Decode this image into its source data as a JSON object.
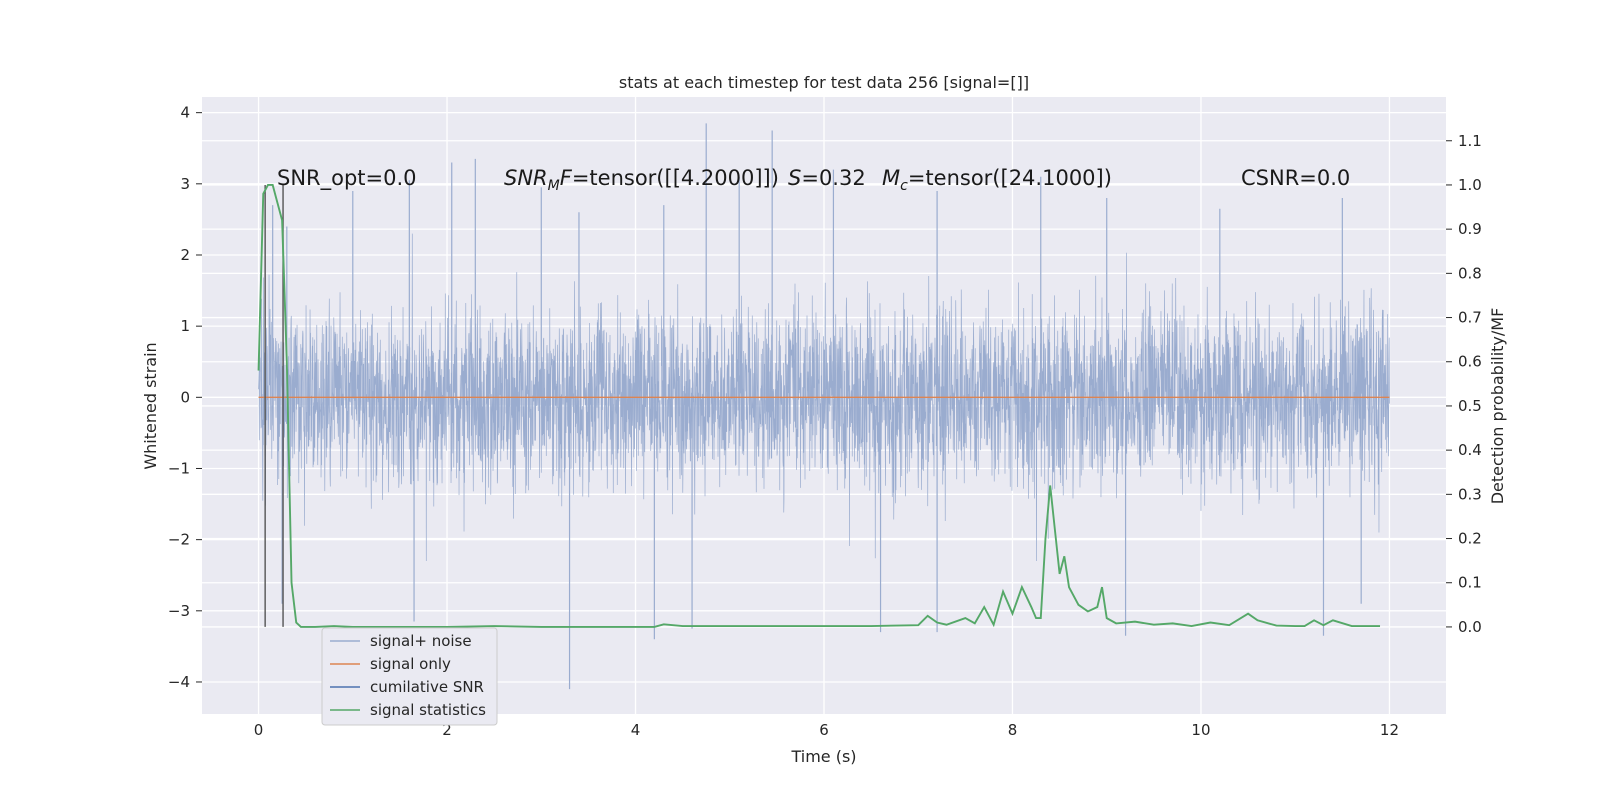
{
  "chart_data": {
    "type": "line",
    "title": "stats at each timestep for test data 256 [signal=[]]",
    "xlabel": "Time (s)",
    "ylabel": "Whitened strain",
    "y2label": "Detection probability/MF",
    "xlim": [
      -0.6,
      12.6
    ],
    "ylim": [
      -4.45,
      4.22
    ],
    "y2lim": [
      -0.197,
      1.199
    ],
    "xticks": [
      0,
      2,
      4,
      6,
      8,
      10,
      12
    ],
    "yticks": [
      -4,
      -3,
      -2,
      -1,
      0,
      1,
      2,
      3,
      4
    ],
    "y2ticks": [
      0.0,
      0.1,
      0.2,
      0.3,
      0.4,
      0.5,
      0.6,
      0.7,
      0.8,
      0.9,
      1.0,
      1.1
    ],
    "xtick_labels": [
      "0",
      "2",
      "4",
      "6",
      "8",
      "10",
      "12"
    ],
    "ytick_labels": [
      "−4",
      "−3",
      "−2",
      "−1",
      "0",
      "1",
      "2",
      "3",
      "4"
    ],
    "y2tick_labels": [
      "0.0",
      "0.1",
      "0.2",
      "0.3",
      "0.4",
      "0.5",
      "0.6",
      "0.7",
      "0.8",
      "0.9",
      "1.0",
      "1.1"
    ],
    "grid": true,
    "legend_position": "lower-left",
    "annotations": {
      "snr_opt": "SNR_opt=0.0",
      "snr_mf_label": "SNR",
      "snr_mf_sub": "M",
      "snr_mf_suffix": "F",
      "snr_mf_value": "=tensor([[4.2000]])",
      "s_label": "S",
      "s_value": "=0.32",
      "mc_label": "M",
      "mc_sub": "c",
      "mc_value": "=tensor([24.1000])",
      "csnr": "CSNR=0.0"
    },
    "series": [
      {
        "name": "signal+ noise",
        "color": "#9aaccf",
        "axis": "left",
        "x_range": [
          0,
          12
        ],
        "typical_range": [
          -1.7,
          1.8
        ],
        "peaks_high": [
          [
            0.15,
            2.7
          ],
          [
            0.3,
            2.4
          ],
          [
            1.0,
            2.9
          ],
          [
            1.6,
            3.05
          ],
          [
            2.05,
            3.3
          ],
          [
            2.3,
            3.35
          ],
          [
            3.0,
            2.95
          ],
          [
            3.4,
            2.6
          ],
          [
            4.3,
            2.7
          ],
          [
            4.75,
            3.85
          ],
          [
            5.1,
            3.1
          ],
          [
            5.45,
            3.75
          ],
          [
            6.1,
            3.2
          ],
          [
            7.2,
            2.9
          ],
          [
            8.3,
            3.1
          ],
          [
            9.0,
            2.8
          ],
          [
            10.2,
            2.65
          ],
          [
            11.5,
            2.8
          ]
        ],
        "peaks_low": [
          [
            0.25,
            -2.9
          ],
          [
            1.65,
            -3.15
          ],
          [
            3.3,
            -4.1
          ],
          [
            4.2,
            -3.4
          ],
          [
            4.6,
            -3.25
          ],
          [
            6.6,
            -3.3
          ],
          [
            7.2,
            -3.3
          ],
          [
            9.2,
            -3.35
          ],
          [
            11.3,
            -3.35
          ],
          [
            11.7,
            -2.9
          ]
        ]
      },
      {
        "name": "signal only",
        "color": "#dd8452",
        "axis": "left",
        "x": [
          0,
          12
        ],
        "y": [
          0,
          0
        ]
      },
      {
        "name": "cumilative SNR",
        "color": "#4c72b0",
        "axis": "left",
        "x": [],
        "y": []
      },
      {
        "name": "signal statistics",
        "color": "#55a868",
        "axis": "right",
        "x": [
          0.0,
          0.05,
          0.1,
          0.15,
          0.2,
          0.25,
          0.3,
          0.35,
          0.4,
          0.45,
          0.5,
          0.6,
          0.8,
          1.0,
          1.2,
          1.5,
          2.0,
          2.5,
          3.0,
          3.5,
          4.0,
          4.2,
          4.3,
          4.5,
          5.0,
          5.5,
          6.0,
          6.5,
          7.0,
          7.1,
          7.2,
          7.3,
          7.5,
          7.6,
          7.7,
          7.8,
          7.9,
          8.0,
          8.1,
          8.2,
          8.25,
          8.3,
          8.35,
          8.4,
          8.45,
          8.5,
          8.55,
          8.6,
          8.7,
          8.8,
          8.9,
          8.95,
          9.0,
          9.1,
          9.3,
          9.5,
          9.7,
          9.9,
          10.1,
          10.3,
          10.5,
          10.6,
          10.8,
          11.0,
          11.1,
          11.2,
          11.3,
          11.4,
          11.6,
          11.9
        ],
        "y": [
          0.58,
          0.98,
          1.0,
          1.0,
          0.96,
          0.92,
          0.6,
          0.1,
          0.01,
          0.0,
          0.0,
          0.0,
          0.002,
          0.0,
          0.0,
          0.0,
          0.0,
          0.002,
          0.0,
          0.0,
          0.0,
          0.0,
          0.006,
          0.002,
          0.002,
          0.002,
          0.002,
          0.002,
          0.004,
          0.025,
          0.01,
          0.005,
          0.02,
          0.008,
          0.045,
          0.005,
          0.08,
          0.03,
          0.09,
          0.045,
          0.02,
          0.02,
          0.2,
          0.32,
          0.22,
          0.12,
          0.16,
          0.09,
          0.05,
          0.035,
          0.045,
          0.09,
          0.02,
          0.008,
          0.012,
          0.005,
          0.008,
          0.002,
          0.01,
          0.004,
          0.03,
          0.015,
          0.003,
          0.002,
          0.002,
          0.015,
          0.004,
          0.015,
          0.002,
          0.002
        ]
      }
    ],
    "vlines": [
      0.07,
      0.26
    ],
    "vline_color": "#555555"
  }
}
